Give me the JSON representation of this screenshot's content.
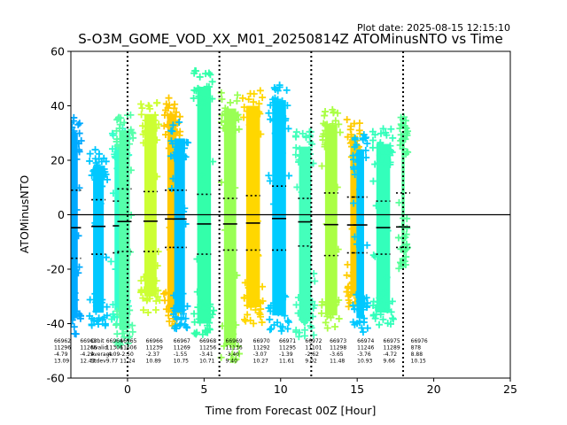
{
  "chart_data": {
    "type": "scatter",
    "plot_date": "Plot date: 2025-08-15 12:15:10",
    "title": "S-O3M_GOME_VOD_XX_M01_20250814Z ATOMinusNTO vs Time",
    "xlabel": "Time from Forecast 00Z [Hour]",
    "ylabel": "ATOMinusNTO",
    "xlim": [
      -3.7,
      25
    ],
    "ylim": [
      -60,
      60
    ],
    "x_ticks": [
      0,
      5,
      10,
      15,
      20,
      25
    ],
    "y_ticks": [
      -60,
      -40,
      -20,
      0,
      20,
      40,
      60
    ],
    "vlines_x": [
      0,
      6,
      12,
      18
    ],
    "hline_y": 0,
    "grid": false,
    "groups": [
      {
        "x": -3.5,
        "orbit": "66962",
        "count": "11296",
        "mean": -4.79,
        "std": 13.09,
        "color": "#00aaff",
        "ymin": -44,
        "ymax": 36,
        "p_lo": -16,
        "p_hi": 9,
        "scatter": 0.25
      },
      {
        "x": -1.9,
        "orbit": "66963",
        "count": "11266",
        "mean": -4.29,
        "std": 12.43,
        "color": "#00c8ff",
        "ymin": -42,
        "ymax": 24,
        "p_lo": -14.5,
        "p_hi": 5.5,
        "scatter": 0.35
      },
      {
        "x": -0.5,
        "orbit": "66964",
        "count": "11306",
        "mean": -4.09,
        "std": 9.77,
        "color": "#33ffcc",
        "ymin": -41,
        "ymax": 32,
        "p_lo": -14,
        "p_hi": 5,
        "scatter": 0.35
      },
      {
        "x": -0.2,
        "orbit": "66965",
        "count": "11606",
        "mean": -2.5,
        "std": 11.24,
        "color": "#55ffaa",
        "ymin": -48,
        "ymax": 37,
        "p_lo": -13.5,
        "p_hi": 9.5,
        "scatter": 0.35
      },
      {
        "x": 1.5,
        "orbit": "66966",
        "count": "11239",
        "mean": -2.37,
        "std": 10.89,
        "color": "#ccff33",
        "ymin": -36,
        "ymax": 43,
        "p_lo": -13.5,
        "p_hi": 8.5,
        "scatter": 0.4
      },
      {
        "x": 2.9,
        "orbit": "66967",
        "count": "11269",
        "mean": -1.55,
        "std": 10.75,
        "color": "#ffc800",
        "ymin": -42,
        "ymax": 43,
        "p_lo": -12,
        "p_hi": 9,
        "scatter": 0.3
      },
      {
        "x": 3.4,
        "orbit": "66967b",
        "count": "",
        "mean": -1.55,
        "std": 10.75,
        "color": "#00c0ff",
        "ymin": -42,
        "ymax": 34,
        "p_lo": -12,
        "p_hi": 9,
        "scatter": 0.35
      },
      {
        "x": 5.0,
        "orbit": "66968",
        "count": "11256",
        "mean": -3.41,
        "std": 10.71,
        "color": "#33ffaa",
        "ymin": -46,
        "ymax": 53,
        "p_lo": -14.5,
        "p_hi": 7.5,
        "scatter": 0.45
      },
      {
        "x": 6.7,
        "orbit": "66969",
        "count": "11136",
        "mean": -3.4,
        "std": 9.4,
        "color": "#99ff55",
        "ymin": -54,
        "ymax": 45,
        "p_lo": -13,
        "p_hi": 6,
        "scatter": 0.4
      },
      {
        "x": 8.2,
        "orbit": "66970",
        "count": "11292",
        "mean": -3.07,
        "std": 10.27,
        "color": "#ffd700",
        "ymin": -40,
        "ymax": 46,
        "p_lo": -13,
        "p_hi": 7,
        "scatter": 0.45
      },
      {
        "x": 9.9,
        "orbit": "66971",
        "count": "11295",
        "mean": -1.39,
        "std": 11.61,
        "color": "#00ccff",
        "ymin": -43,
        "ymax": 48,
        "p_lo": -13,
        "p_hi": 10.5,
        "scatter": 0.45
      },
      {
        "x": 11.6,
        "orbit": "66972",
        "count": "11101",
        "mean": -2.62,
        "std": 9.02,
        "color": "#44ffbb",
        "ymin": -45,
        "ymax": 31,
        "p_lo": -11.5,
        "p_hi": 6,
        "scatter": 0.4
      },
      {
        "x": 13.3,
        "orbit": "66973",
        "count": "11298",
        "mean": -3.65,
        "std": 11.48,
        "color": "#aaff44",
        "ymin": -43,
        "ymax": 39,
        "p_lo": -15,
        "p_hi": 8,
        "scatter": 0.4
      },
      {
        "x": 14.8,
        "orbit": "66974",
        "count": "11246",
        "mean": -3.76,
        "std": 10.93,
        "color": "#ffcc00",
        "ymin": -36,
        "ymax": 35,
        "p_lo": -14,
        "p_hi": 6.5,
        "scatter": 0.25
      },
      {
        "x": 15.2,
        "orbit": "66974b",
        "count": "",
        "mean": -3.76,
        "std": 10.93,
        "color": "#00c8ff",
        "ymin": -44,
        "ymax": 30,
        "p_lo": -14,
        "p_hi": 6.5,
        "scatter": 0.25
      },
      {
        "x": 16.7,
        "orbit": "66975",
        "count": "11289",
        "mean": -4.72,
        "std": 9.66,
        "color": "#33ffbb",
        "ymin": -42,
        "ymax": 32,
        "p_lo": -14.5,
        "p_hi": 5,
        "scatter": 0.45
      },
      {
        "x": 18.0,
        "orbit": "66976",
        "count": "878",
        "mean": 8.88,
        "std": 10.15,
        "color": "#55ff99",
        "ymin": -20,
        "ymax": 36,
        "p_lo": -12,
        "p_hi": 8,
        "scatter": 0.1
      }
    ],
    "stat_labels": [
      {
        "x": -4.8,
        "lines": [
          "66962",
          "11296",
          "-4.79",
          "13.09"
        ]
      },
      {
        "x": -3.1,
        "lines": [
          "66963",
          "11266",
          "-4.29",
          "12.43"
        ]
      },
      {
        "x": -2.4,
        "lines": [
          "Orbit",
          "Nvalid",
          "Average",
          "Stdev"
        ]
      },
      {
        "x": -1.4,
        "lines": [
          "66964",
          "11306",
          "-4.09",
          "9.77"
        ]
      },
      {
        "x": -0.5,
        "lines": [
          "66965",
          "11606",
          "-2.50",
          "11.24"
        ]
      },
      {
        "x": 1.2,
        "lines": [
          "66966",
          "11239",
          "-2.37",
          "10.89"
        ]
      },
      {
        "x": 3.0,
        "lines": [
          "66967",
          "11269",
          "-1.55",
          "10.75"
        ]
      },
      {
        "x": 4.7,
        "lines": [
          "66968",
          "11256",
          "-3.41",
          "10.71"
        ]
      },
      {
        "x": 6.4,
        "lines": [
          "66969",
          "11136",
          "-3.40",
          "9.40"
        ]
      },
      {
        "x": 8.2,
        "lines": [
          "66970",
          "11292",
          "-3.07",
          "10.27"
        ]
      },
      {
        "x": 9.9,
        "lines": [
          "66971",
          "11295",
          "-1.39",
          "11.61"
        ]
      },
      {
        "x": 11.6,
        "lines": [
          "66972",
          "11101",
          "-2.62",
          "9.02"
        ]
      },
      {
        "x": 13.2,
        "lines": [
          "66973",
          "11298",
          "-3.65",
          "11.48"
        ]
      },
      {
        "x": 15.0,
        "lines": [
          "66974",
          "11246",
          "-3.76",
          "10.93"
        ]
      },
      {
        "x": 16.7,
        "lines": [
          "66975",
          "11289",
          "-4.72",
          "9.66"
        ]
      },
      {
        "x": 18.5,
        "lines": [
          "66976",
          "878",
          "8.88",
          "10.15"
        ]
      }
    ]
  }
}
